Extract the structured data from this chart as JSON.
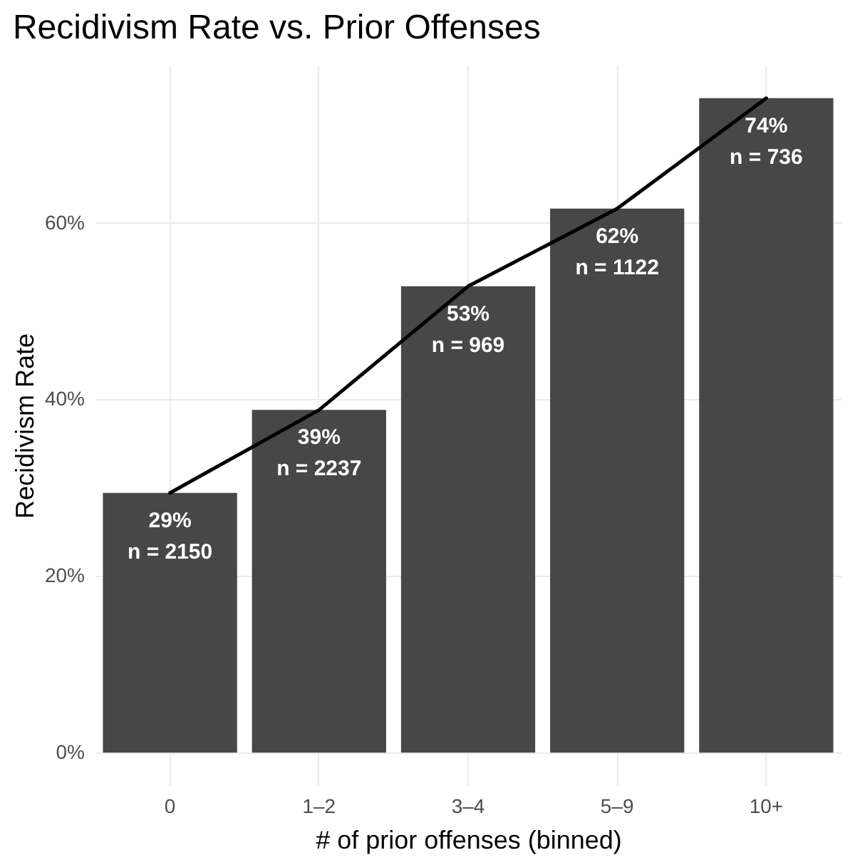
{
  "chart_data": {
    "type": "bar",
    "title": "Recidivism Rate vs. Prior Offenses",
    "xlabel": "# of prior offenses (binned)",
    "ylabel": "Recidivism Rate",
    "categories": [
      "0",
      "1–2",
      "3–4",
      "5–9",
      "10+"
    ],
    "series": [
      {
        "color": "#474747",
        "values": [
          29.4,
          38.8,
          52.8,
          61.6,
          74.1
        ],
        "value_labels": [
          "29%\nn = 2150",
          "39%\nn = 2237",
          "53%\nn = 969",
          "62%\nn = 1122",
          "74%\nn = 736"
        ]
      },
      {
        "type": "line",
        "color": "#000000",
        "values": [
          29.4,
          38.8,
          52.8,
          61.6,
          74.1
        ]
      }
    ],
    "ylim": [
      -3.7,
      77.8
    ],
    "yticks": [
      {
        "value": 0,
        "label": "0%"
      },
      {
        "value": 20,
        "label": "20%"
      },
      {
        "value": 40,
        "label": "40%"
      },
      {
        "value": 60,
        "label": "60%"
      }
    ],
    "grid": true
  }
}
